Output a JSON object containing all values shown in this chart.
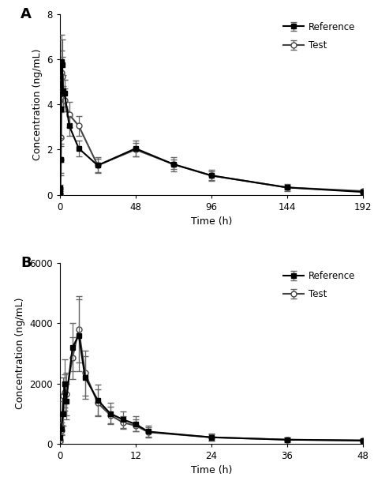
{
  "panel_A": {
    "label": "A",
    "xlabel": "Time (h)",
    "ylabel": "Concentration (ng/mL)",
    "xlim": [
      0,
      192
    ],
    "ylim": [
      0,
      8
    ],
    "yticks": [
      0,
      2,
      4,
      6,
      8
    ],
    "xticks": [
      0,
      48,
      96,
      144,
      192
    ],
    "reference": {
      "x": [
        0,
        0.25,
        0.5,
        0.75,
        1.0,
        1.5,
        2.0,
        3.0,
        6.0,
        12.0,
        24.0,
        48.0,
        72.0,
        96.0,
        144.0,
        192.0
      ],
      "y": [
        0.05,
        0.3,
        1.55,
        3.8,
        5.9,
        5.75,
        4.6,
        4.5,
        3.05,
        2.05,
        1.3,
        2.05,
        1.35,
        0.85,
        0.32,
        0.12
      ],
      "yerr": [
        0.05,
        0.15,
        0.7,
        1.3,
        1.2,
        1.15,
        0.7,
        0.6,
        0.45,
        0.35,
        0.35,
        0.35,
        0.3,
        0.25,
        0.15,
        0.07
      ]
    },
    "test": {
      "x": [
        0,
        0.25,
        0.5,
        0.75,
        1.0,
        1.5,
        2.0,
        3.0,
        6.0,
        12.0,
        24.0,
        48.0,
        72.0,
        96.0,
        144.0,
        192.0
      ],
      "y": [
        0.02,
        0.25,
        1.55,
        2.55,
        5.4,
        5.25,
        4.25,
        4.2,
        3.55,
        3.05,
        1.3,
        2.0,
        1.35,
        0.85,
        0.32,
        0.16
      ],
      "yerr": [
        0.02,
        0.1,
        0.6,
        1.1,
        1.0,
        0.85,
        0.55,
        0.5,
        0.55,
        0.45,
        0.3,
        0.3,
        0.2,
        0.2,
        0.1,
        0.06
      ]
    }
  },
  "panel_B": {
    "label": "B",
    "xlabel": "Time (h)",
    "ylabel": "Concentration (ng/mL)",
    "xlim": [
      0,
      48
    ],
    "ylim": [
      0,
      6000
    ],
    "yticks": [
      0,
      2000,
      4000,
      6000
    ],
    "xticks": [
      0,
      12,
      24,
      36,
      48
    ],
    "reference": {
      "x": [
        0,
        0.25,
        0.5,
        0.75,
        1.0,
        2.0,
        3.0,
        4.0,
        6.0,
        8.0,
        10.0,
        12.0,
        14.0,
        24.0,
        36.0,
        48.0
      ],
      "y": [
        200,
        500,
        1000,
        2000,
        1400,
        3200,
        3600,
        2200,
        1450,
        1000,
        800,
        650,
        400,
        210,
        130,
        100
      ],
      "yerr": [
        100,
        200,
        400,
        800,
        600,
        800,
        1200,
        700,
        500,
        350,
        280,
        250,
        200,
        120,
        80,
        60
      ]
    },
    "test": {
      "x": [
        0,
        0.25,
        0.5,
        0.75,
        1.0,
        2.0,
        3.0,
        4.0,
        6.0,
        8.0,
        10.0,
        12.0,
        14.0,
        24.0,
        36.0,
        48.0
      ],
      "y": [
        100,
        450,
        1600,
        1700,
        1650,
        2850,
        3800,
        2350,
        1350,
        950,
        700,
        600,
        380,
        210,
        130,
        110
      ],
      "yerr": [
        50,
        180,
        600,
        600,
        700,
        700,
        1100,
        750,
        450,
        280,
        220,
        200,
        160,
        100,
        60,
        50
      ]
    }
  },
  "ref_color": "#000000",
  "test_color": "#444444",
  "ref_marker": "s",
  "test_marker": "o",
  "ref_markerfacecolor": "#000000",
  "test_markerfacecolor": "#ffffff",
  "linewidth": 1.5,
  "markersize": 5,
  "capsize": 3,
  "elinewidth": 0.9,
  "ecolor": "#666666"
}
